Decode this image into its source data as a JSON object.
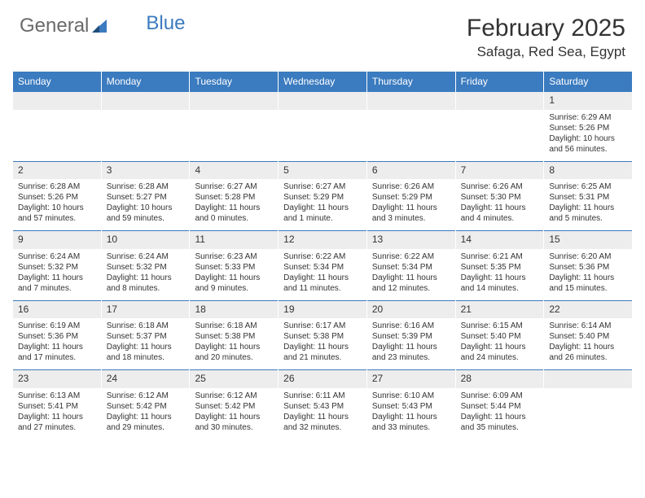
{
  "logo": {
    "text1": "General",
    "text2": "Blue"
  },
  "title": "February 2025",
  "location": "Safaga, Red Sea, Egypt",
  "colors": {
    "header_bg": "#3b7bbf",
    "header_text": "#ffffff",
    "daynum_bg": "#ededed",
    "border": "#3b7bbf"
  },
  "weekdays": [
    "Sunday",
    "Monday",
    "Tuesday",
    "Wednesday",
    "Thursday",
    "Friday",
    "Saturday"
  ],
  "weeks": [
    [
      {
        "n": "",
        "sr": "",
        "ss": "",
        "dl": "",
        "empty": true
      },
      {
        "n": "",
        "sr": "",
        "ss": "",
        "dl": "",
        "empty": true
      },
      {
        "n": "",
        "sr": "",
        "ss": "",
        "dl": "",
        "empty": true
      },
      {
        "n": "",
        "sr": "",
        "ss": "",
        "dl": "",
        "empty": true
      },
      {
        "n": "",
        "sr": "",
        "ss": "",
        "dl": "",
        "empty": true
      },
      {
        "n": "",
        "sr": "",
        "ss": "",
        "dl": "",
        "empty": true
      },
      {
        "n": "1",
        "sr": "Sunrise: 6:29 AM",
        "ss": "Sunset: 5:26 PM",
        "dl": "Daylight: 10 hours and 56 minutes."
      }
    ],
    [
      {
        "n": "2",
        "sr": "Sunrise: 6:28 AM",
        "ss": "Sunset: 5:26 PM",
        "dl": "Daylight: 10 hours and 57 minutes."
      },
      {
        "n": "3",
        "sr": "Sunrise: 6:28 AM",
        "ss": "Sunset: 5:27 PM",
        "dl": "Daylight: 10 hours and 59 minutes."
      },
      {
        "n": "4",
        "sr": "Sunrise: 6:27 AM",
        "ss": "Sunset: 5:28 PM",
        "dl": "Daylight: 11 hours and 0 minutes."
      },
      {
        "n": "5",
        "sr": "Sunrise: 6:27 AM",
        "ss": "Sunset: 5:29 PM",
        "dl": "Daylight: 11 hours and 1 minute."
      },
      {
        "n": "6",
        "sr": "Sunrise: 6:26 AM",
        "ss": "Sunset: 5:29 PM",
        "dl": "Daylight: 11 hours and 3 minutes."
      },
      {
        "n": "7",
        "sr": "Sunrise: 6:26 AM",
        "ss": "Sunset: 5:30 PM",
        "dl": "Daylight: 11 hours and 4 minutes."
      },
      {
        "n": "8",
        "sr": "Sunrise: 6:25 AM",
        "ss": "Sunset: 5:31 PM",
        "dl": "Daylight: 11 hours and 5 minutes."
      }
    ],
    [
      {
        "n": "9",
        "sr": "Sunrise: 6:24 AM",
        "ss": "Sunset: 5:32 PM",
        "dl": "Daylight: 11 hours and 7 minutes."
      },
      {
        "n": "10",
        "sr": "Sunrise: 6:24 AM",
        "ss": "Sunset: 5:32 PM",
        "dl": "Daylight: 11 hours and 8 minutes."
      },
      {
        "n": "11",
        "sr": "Sunrise: 6:23 AM",
        "ss": "Sunset: 5:33 PM",
        "dl": "Daylight: 11 hours and 9 minutes."
      },
      {
        "n": "12",
        "sr": "Sunrise: 6:22 AM",
        "ss": "Sunset: 5:34 PM",
        "dl": "Daylight: 11 hours and 11 minutes."
      },
      {
        "n": "13",
        "sr": "Sunrise: 6:22 AM",
        "ss": "Sunset: 5:34 PM",
        "dl": "Daylight: 11 hours and 12 minutes."
      },
      {
        "n": "14",
        "sr": "Sunrise: 6:21 AM",
        "ss": "Sunset: 5:35 PM",
        "dl": "Daylight: 11 hours and 14 minutes."
      },
      {
        "n": "15",
        "sr": "Sunrise: 6:20 AM",
        "ss": "Sunset: 5:36 PM",
        "dl": "Daylight: 11 hours and 15 minutes."
      }
    ],
    [
      {
        "n": "16",
        "sr": "Sunrise: 6:19 AM",
        "ss": "Sunset: 5:36 PM",
        "dl": "Daylight: 11 hours and 17 minutes."
      },
      {
        "n": "17",
        "sr": "Sunrise: 6:18 AM",
        "ss": "Sunset: 5:37 PM",
        "dl": "Daylight: 11 hours and 18 minutes."
      },
      {
        "n": "18",
        "sr": "Sunrise: 6:18 AM",
        "ss": "Sunset: 5:38 PM",
        "dl": "Daylight: 11 hours and 20 minutes."
      },
      {
        "n": "19",
        "sr": "Sunrise: 6:17 AM",
        "ss": "Sunset: 5:38 PM",
        "dl": "Daylight: 11 hours and 21 minutes."
      },
      {
        "n": "20",
        "sr": "Sunrise: 6:16 AM",
        "ss": "Sunset: 5:39 PM",
        "dl": "Daylight: 11 hours and 23 minutes."
      },
      {
        "n": "21",
        "sr": "Sunrise: 6:15 AM",
        "ss": "Sunset: 5:40 PM",
        "dl": "Daylight: 11 hours and 24 minutes."
      },
      {
        "n": "22",
        "sr": "Sunrise: 6:14 AM",
        "ss": "Sunset: 5:40 PM",
        "dl": "Daylight: 11 hours and 26 minutes."
      }
    ],
    [
      {
        "n": "23",
        "sr": "Sunrise: 6:13 AM",
        "ss": "Sunset: 5:41 PM",
        "dl": "Daylight: 11 hours and 27 minutes."
      },
      {
        "n": "24",
        "sr": "Sunrise: 6:12 AM",
        "ss": "Sunset: 5:42 PM",
        "dl": "Daylight: 11 hours and 29 minutes."
      },
      {
        "n": "25",
        "sr": "Sunrise: 6:12 AM",
        "ss": "Sunset: 5:42 PM",
        "dl": "Daylight: 11 hours and 30 minutes."
      },
      {
        "n": "26",
        "sr": "Sunrise: 6:11 AM",
        "ss": "Sunset: 5:43 PM",
        "dl": "Daylight: 11 hours and 32 minutes."
      },
      {
        "n": "27",
        "sr": "Sunrise: 6:10 AM",
        "ss": "Sunset: 5:43 PM",
        "dl": "Daylight: 11 hours and 33 minutes."
      },
      {
        "n": "28",
        "sr": "Sunrise: 6:09 AM",
        "ss": "Sunset: 5:44 PM",
        "dl": "Daylight: 11 hours and 35 minutes."
      },
      {
        "n": "",
        "sr": "",
        "ss": "",
        "dl": "",
        "empty": true
      }
    ]
  ]
}
